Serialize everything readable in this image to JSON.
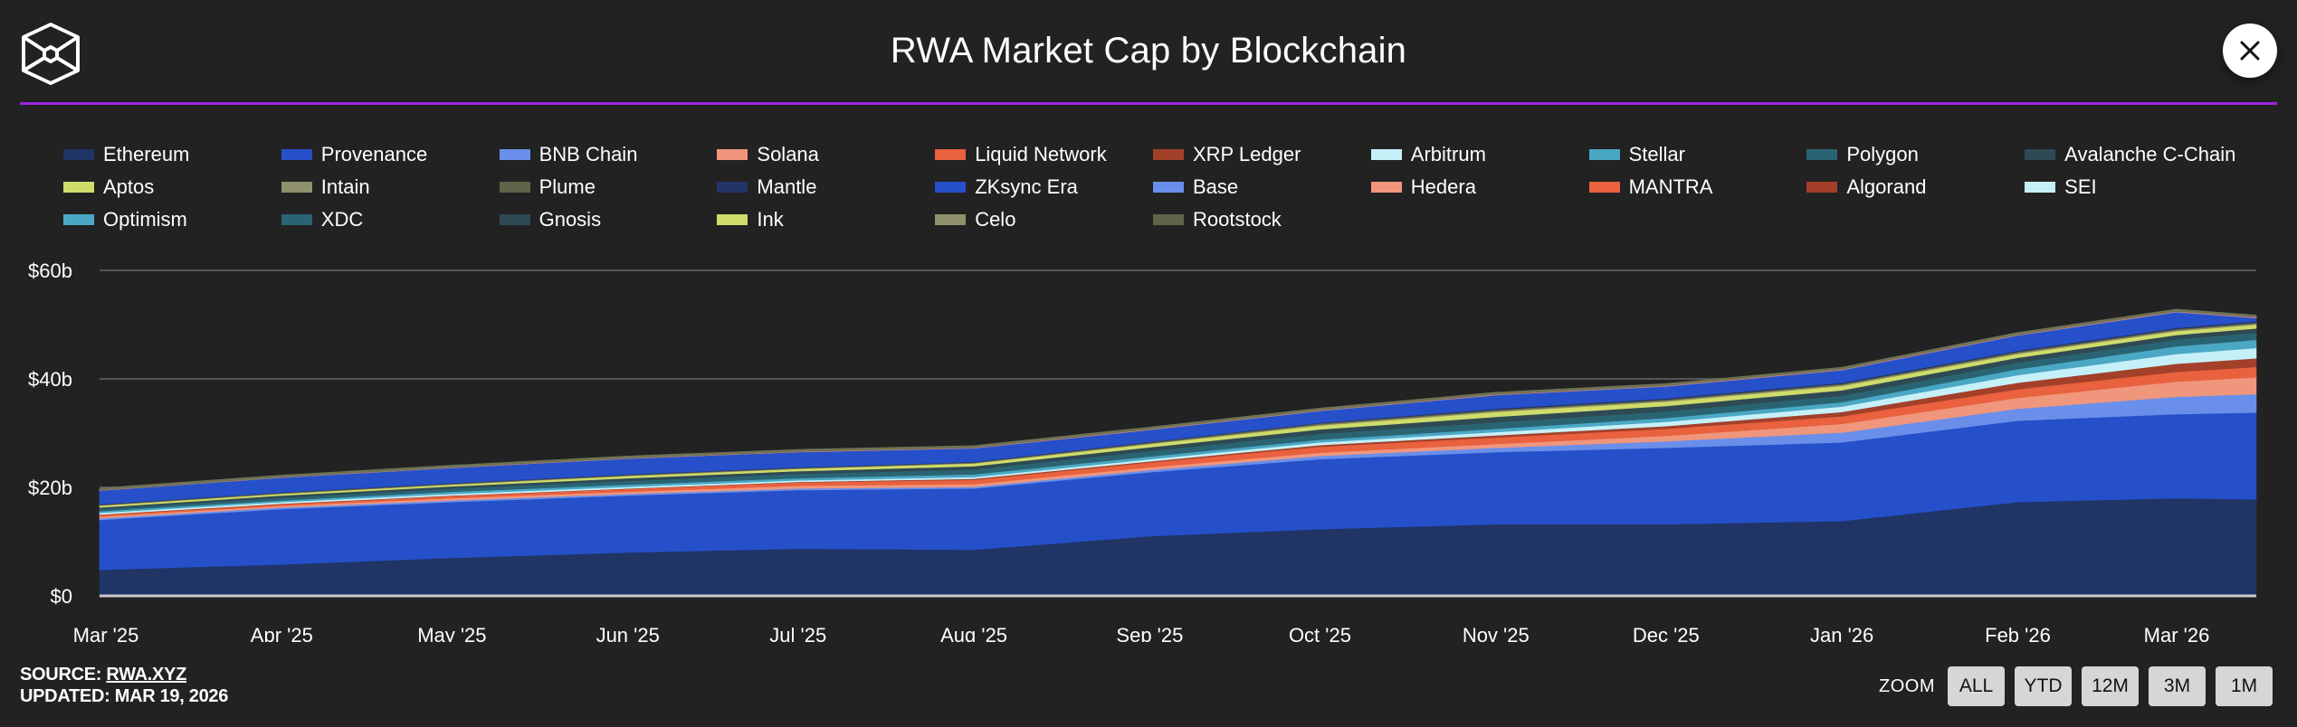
{
  "header": {
    "title": "RWA Market Cap by Blockchain",
    "logo_icon": "rwa-cube-logo-icon",
    "close_icon": "close-icon",
    "accent_color": "#9b27e6"
  },
  "footer": {
    "source_label": "SOURCE:",
    "source_link": "RWA.XYZ",
    "updated_label": "UPDATED: MAR 19, 2026"
  },
  "zoom": {
    "label": "ZOOM",
    "buttons": [
      "ALL",
      "YTD",
      "12M",
      "3M",
      "1M"
    ]
  },
  "chart_data": {
    "type": "area",
    "stacked": true,
    "title": "RWA Market Cap by Blockchain",
    "xlabel": "",
    "ylabel": "",
    "ylim": [
      0,
      60
    ],
    "y_unit": "billion USD",
    "y_ticks": [
      0,
      20,
      40,
      60
    ],
    "y_tick_labels": [
      "$0",
      "$20b",
      "$40b",
      "$60b"
    ],
    "x_tick_labels": [
      "Mar '25",
      "Apr '25",
      "May '25",
      "Jun '25",
      "Jul '25",
      "Aug '25",
      "Sep '25",
      "Oct '25",
      "Nov '25",
      "Dec '25",
      "Jan '26",
      "Feb '26",
      "Mar '26"
    ],
    "x": [
      "2025-03-01",
      "2025-04-01",
      "2025-05-01",
      "2025-06-01",
      "2025-07-01",
      "2025-08-01",
      "2025-09-01",
      "2025-10-01",
      "2025-11-01",
      "2025-12-01",
      "2026-01-01",
      "2026-02-01",
      "2026-03-01",
      "2026-03-15"
    ],
    "grid": true,
    "legend_position": "top",
    "series": [
      {
        "name": "Ethereum",
        "color": "#213466",
        "values": [
          4.8,
          5.8,
          7.0,
          8.0,
          8.7,
          8.5,
          11.0,
          12.3,
          13.2,
          13.2,
          13.8,
          17.3,
          18.0,
          17.8
        ]
      },
      {
        "name": "Provenance",
        "color": "#2550c9",
        "values": [
          9.2,
          10.2,
          10.3,
          10.5,
          10.8,
          11.3,
          11.8,
          12.9,
          13.3,
          14.1,
          14.5,
          15.0,
          15.5,
          16.0
        ]
      },
      {
        "name": "BNB Chain",
        "color": "#6a8fea",
        "values": [
          0.3,
          0.3,
          0.3,
          0.3,
          0.3,
          0.3,
          0.4,
          0.6,
          0.8,
          1.2,
          1.8,
          2.2,
          3.2,
          3.4
        ]
      },
      {
        "name": "Solana",
        "color": "#f0967c",
        "values": [
          0.3,
          0.3,
          0.4,
          0.4,
          0.5,
          0.5,
          0.5,
          0.6,
          0.7,
          1.0,
          1.6,
          2.0,
          2.8,
          3.1
        ]
      },
      {
        "name": "Liquid Network",
        "color": "#e9613e",
        "values": [
          0.3,
          0.3,
          0.4,
          0.5,
          0.6,
          0.8,
          0.9,
          1.1,
          1.2,
          1.3,
          1.4,
          1.6,
          1.8,
          1.9
        ]
      },
      {
        "name": "XRP Ledger",
        "color": "#a2402a",
        "values": [
          0.1,
          0.1,
          0.1,
          0.1,
          0.1,
          0.2,
          0.2,
          0.3,
          0.4,
          0.5,
          0.8,
          1.2,
          1.5,
          1.6
        ]
      },
      {
        "name": "Arbitrum",
        "color": "#c6f0f8",
        "values": [
          0.3,
          0.3,
          0.3,
          0.3,
          0.3,
          0.3,
          0.4,
          0.5,
          0.6,
          0.8,
          1.0,
          1.4,
          1.8,
          1.9
        ]
      },
      {
        "name": "Stellar",
        "color": "#4aa8c4",
        "values": [
          0.3,
          0.3,
          0.4,
          0.4,
          0.4,
          0.5,
          0.5,
          0.5,
          0.6,
          0.7,
          0.8,
          1.1,
          1.4,
          1.5
        ]
      },
      {
        "name": "Polygon",
        "color": "#2a6473",
        "values": [
          0.4,
          0.5,
          0.6,
          0.7,
          0.8,
          0.9,
          1.0,
          1.1,
          1.2,
          1.2,
          1.2,
          1.2,
          1.3,
          1.3
        ]
      },
      {
        "name": "Avalanche C-Chain",
        "color": "#2f4a52",
        "values": [
          0.3,
          0.4,
          0.4,
          0.5,
          0.5,
          0.6,
          0.7,
          0.8,
          1.0,
          1.0,
          1.0,
          0.9,
          0.8,
          0.8
        ]
      },
      {
        "name": "Aptos",
        "color": "#cfdc6a",
        "values": [
          0.3,
          0.3,
          0.3,
          0.4,
          0.4,
          0.5,
          0.6,
          0.7,
          0.9,
          0.8,
          0.8,
          0.7,
          0.7,
          0.7
        ]
      },
      {
        "name": "Intain",
        "color": "#8e916b",
        "values": [
          0.1,
          0.1,
          0.1,
          0.1,
          0.1,
          0.1,
          0.1,
          0.2,
          0.2,
          0.2,
          0.2,
          0.2,
          0.2,
          0.2
        ]
      },
      {
        "name": "Plume",
        "color": "#5e6448",
        "values": [
          0.1,
          0.1,
          0.1,
          0.1,
          0.1,
          0.1,
          0.2,
          0.2,
          0.2,
          0.2,
          0.2,
          0.2,
          0.2,
          0.2
        ]
      },
      {
        "name": "Mantle",
        "color": "#243466",
        "values": [
          0.1,
          0.1,
          0.1,
          0.1,
          0.1,
          0.1,
          0.1,
          0.1,
          0.2,
          0.2,
          0.2,
          0.2,
          0.2,
          0.2
        ]
      },
      {
        "name": "ZKsync Era",
        "color": "#2550c9",
        "values": [
          2.5,
          2.7,
          2.8,
          2.9,
          2.8,
          2.5,
          2.2,
          2.2,
          2.5,
          2.2,
          2.3,
          2.8,
          2.9,
          0.6
        ]
      },
      {
        "name": "Base",
        "color": "#6a8fea",
        "values": [
          0.02,
          0.02,
          0.03,
          0.03,
          0.03,
          0.03,
          0.04,
          0.04,
          0.05,
          0.05,
          0.05,
          0.06,
          0.06,
          0.06
        ]
      },
      {
        "name": "Hedera",
        "color": "#f0967c",
        "values": [
          0.02,
          0.02,
          0.02,
          0.02,
          0.03,
          0.03,
          0.03,
          0.03,
          0.03,
          0.03,
          0.04,
          0.04,
          0.04,
          0.04
        ]
      },
      {
        "name": "MANTRA",
        "color": "#e9613e",
        "values": [
          0.05,
          0.05,
          0.06,
          0.06,
          0.06,
          0.07,
          0.07,
          0.07,
          0.08,
          0.08,
          0.08,
          0.08,
          0.08,
          0.08
        ]
      },
      {
        "name": "Algorand",
        "color": "#a2402a",
        "values": [
          0.02,
          0.02,
          0.02,
          0.02,
          0.02,
          0.02,
          0.02,
          0.02,
          0.02,
          0.02,
          0.02,
          0.02,
          0.02,
          0.02
        ]
      },
      {
        "name": "SEI",
        "color": "#c6f0f8",
        "values": [
          0.01,
          0.01,
          0.01,
          0.01,
          0.01,
          0.01,
          0.01,
          0.01,
          0.01,
          0.01,
          0.01,
          0.01,
          0.01,
          0.01
        ]
      },
      {
        "name": "Optimism",
        "color": "#4aa8c4",
        "values": [
          0.01,
          0.01,
          0.01,
          0.01,
          0.01,
          0.01,
          0.01,
          0.01,
          0.01,
          0.01,
          0.01,
          0.01,
          0.01,
          0.01
        ]
      },
      {
        "name": "XDC",
        "color": "#2a6473",
        "values": [
          0.02,
          0.02,
          0.02,
          0.02,
          0.02,
          0.02,
          0.02,
          0.02,
          0.02,
          0.02,
          0.02,
          0.02,
          0.02,
          0.02
        ]
      },
      {
        "name": "Gnosis",
        "color": "#2f4a52",
        "values": [
          0.01,
          0.01,
          0.01,
          0.01,
          0.01,
          0.01,
          0.01,
          0.01,
          0.01,
          0.01,
          0.01,
          0.01,
          0.01,
          0.01
        ]
      },
      {
        "name": "Ink",
        "color": "#cfdc6a",
        "values": [
          0.01,
          0.01,
          0.01,
          0.01,
          0.01,
          0.01,
          0.01,
          0.01,
          0.01,
          0.01,
          0.01,
          0.01,
          0.01,
          0.01
        ]
      },
      {
        "name": "Celo",
        "color": "#8e916b",
        "values": [
          0.05,
          0.05,
          0.05,
          0.05,
          0.05,
          0.05,
          0.05,
          0.05,
          0.05,
          0.05,
          0.05,
          0.05,
          0.05,
          0.05
        ]
      },
      {
        "name": "Rootstock",
        "color": "#5e6448",
        "values": [
          0.05,
          0.05,
          0.05,
          0.05,
          0.05,
          0.05,
          0.05,
          0.05,
          0.05,
          0.05,
          0.05,
          0.05,
          0.05,
          0.05
        ]
      }
    ]
  }
}
